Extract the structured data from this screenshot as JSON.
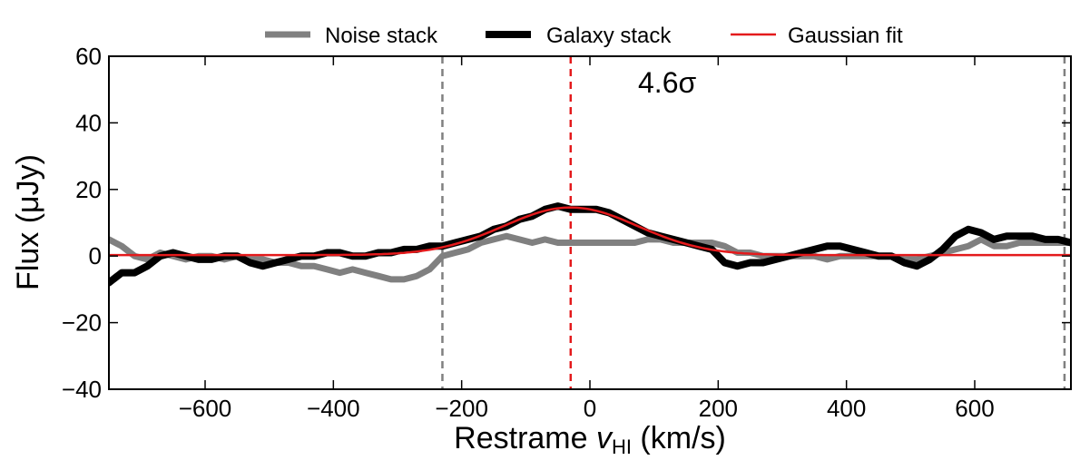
{
  "chart_data": {
    "type": "line",
    "title": "",
    "xlabel": "Restrame v_HI (km/s)",
    "xlabel_main": "Restrame ",
    "xlabel_var": "v",
    "xlabel_sub": "HI",
    "xlabel_units": " (km/s)",
    "ylabel": "Flux (μJy)",
    "xlim": [
      -750,
      750
    ],
    "ylim": [
      -40,
      60
    ],
    "xticks": [
      -600,
      -400,
      -200,
      0,
      200,
      400,
      600
    ],
    "xtick_labels": [
      "−600",
      "−400",
      "−200",
      "0",
      "200",
      "400",
      "600"
    ],
    "yticks": [
      -40,
      -20,
      0,
      20,
      40,
      60
    ],
    "ytick_labels": [
      "−40",
      "−20",
      "0",
      "20",
      "40",
      "60"
    ],
    "grid": false,
    "legend_position": "top-center outside",
    "annotation": "4.6σ",
    "vlines": [
      {
        "x": -230,
        "color": "#808080",
        "style": "dashed"
      },
      {
        "x": -30,
        "color": "#e41a1c",
        "style": "dashed"
      },
      {
        "x": 740,
        "color": "#808080",
        "style": "dashed"
      }
    ],
    "series": [
      {
        "name": "Noise stack",
        "color": "#808080",
        "x": [
          -750,
          -730,
          -710,
          -690,
          -670,
          -650,
          -630,
          -610,
          -590,
          -570,
          -550,
          -530,
          -510,
          -490,
          -470,
          -450,
          -430,
          -410,
          -390,
          -370,
          -350,
          -330,
          -310,
          -290,
          -270,
          -250,
          -230,
          -210,
          -190,
          -170,
          -150,
          -130,
          -110,
          -90,
          -70,
          -50,
          -30,
          -10,
          10,
          30,
          50,
          70,
          90,
          110,
          130,
          150,
          170,
          190,
          210,
          230,
          250,
          270,
          290,
          310,
          330,
          350,
          370,
          390,
          410,
          430,
          450,
          470,
          490,
          510,
          530,
          550,
          570,
          590,
          610,
          630,
          650,
          670,
          690,
          710,
          730,
          750
        ],
        "values": [
          5,
          3,
          0,
          -1,
          1,
          0,
          -1,
          0,
          0,
          -1,
          0,
          -1,
          -1,
          -2,
          -2,
          -3,
          -3,
          -4,
          -5,
          -4,
          -5,
          -6,
          -7,
          -7,
          -6,
          -4,
          0,
          1,
          2,
          4,
          5,
          6,
          5,
          4,
          5,
          4,
          4,
          4,
          4,
          4,
          4,
          4,
          5,
          5,
          4,
          4,
          4,
          4,
          3,
          1,
          1,
          0,
          0,
          0,
          0,
          0,
          -1,
          0,
          0,
          0,
          0,
          0,
          -1,
          -1,
          0,
          1,
          2,
          3,
          5,
          3,
          3,
          4,
          4,
          4,
          4,
          4
        ]
      },
      {
        "name": "Galaxy stack",
        "color": "#000000",
        "x": [
          -750,
          -730,
          -710,
          -690,
          -670,
          -650,
          -630,
          -610,
          -590,
          -570,
          -550,
          -530,
          -510,
          -490,
          -470,
          -450,
          -430,
          -410,
          -390,
          -370,
          -350,
          -330,
          -310,
          -290,
          -270,
          -250,
          -230,
          -210,
          -190,
          -170,
          -150,
          -130,
          -110,
          -90,
          -70,
          -50,
          -30,
          -10,
          10,
          30,
          50,
          70,
          90,
          110,
          130,
          150,
          170,
          190,
          210,
          230,
          250,
          270,
          290,
          310,
          330,
          350,
          370,
          390,
          410,
          430,
          450,
          470,
          490,
          510,
          530,
          550,
          570,
          590,
          610,
          630,
          650,
          670,
          690,
          710,
          730,
          750
        ],
        "values": [
          -8,
          -5,
          -5,
          -3,
          0,
          1,
          0,
          -1,
          -1,
          0,
          0,
          -2,
          -3,
          -2,
          -1,
          0,
          0,
          1,
          1,
          0,
          0,
          1,
          1,
          2,
          2,
          3,
          3,
          4,
          5,
          6,
          8,
          9,
          11,
          12,
          14,
          15,
          14,
          14,
          14,
          13,
          11,
          9,
          7,
          6,
          5,
          4,
          3,
          2,
          -2,
          -3,
          -2,
          -2,
          -1,
          0,
          1,
          2,
          3,
          3,
          2,
          1,
          0,
          0,
          -2,
          -3,
          -1,
          2,
          6,
          8,
          7,
          5,
          6,
          6,
          6,
          5,
          5,
          4
        ]
      },
      {
        "name": "Gaussian fit",
        "color": "#e41a1c",
        "type": "gaussian",
        "amplitude": 14.3,
        "center": -30,
        "sigma": 105,
        "offset": 0.3
      }
    ]
  }
}
